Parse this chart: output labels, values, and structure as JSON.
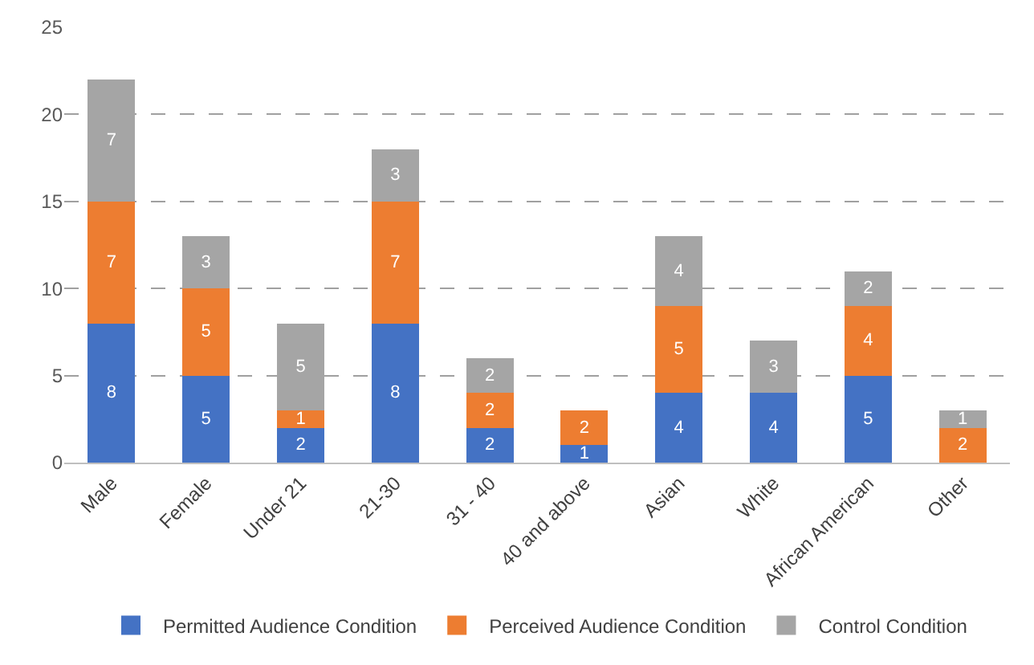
{
  "chart_data": {
    "type": "bar",
    "stacked": true,
    "data_labels": true,
    "grid": "y",
    "legend": "bottom",
    "categories": [
      "Male",
      "Female",
      "Under 21",
      "21-30",
      "31 - 40",
      "40 and above",
      "Asian",
      "White",
      "African American",
      "Other"
    ],
    "series": [
      {
        "name": "Permitted Audience Condition",
        "color": "#4472c4",
        "values": [
          8,
          5,
          2,
          8,
          2,
          1,
          4,
          4,
          5,
          null
        ]
      },
      {
        "name": "Perceived Audience Condition",
        "color": "#ed7d31",
        "values": [
          7,
          5,
          1,
          7,
          2,
          2,
          5,
          null,
          4,
          2
        ]
      },
      {
        "name": "Control Condition",
        "color": "#a5a5a5",
        "values": [
          7,
          3,
          5,
          3,
          2,
          null,
          4,
          3,
          2,
          1
        ]
      }
    ],
    "ylim": [
      0,
      25
    ],
    "yticks": [
      0,
      5,
      10,
      15,
      20,
      25
    ]
  }
}
